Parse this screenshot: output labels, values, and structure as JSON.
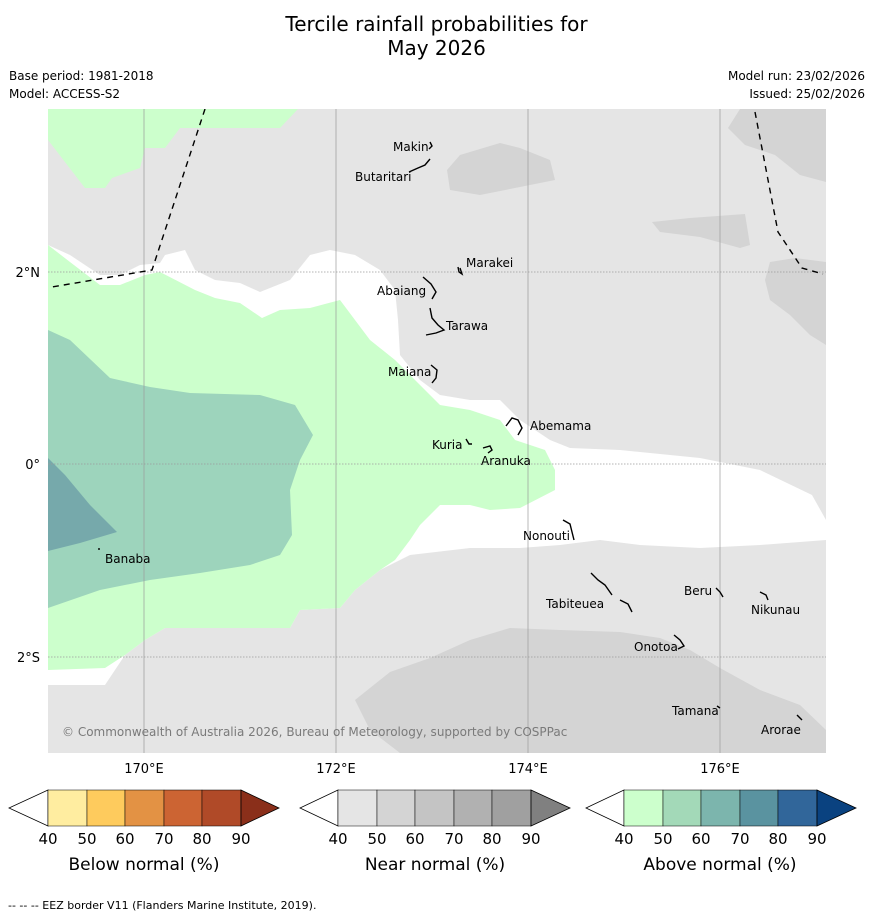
{
  "title": {
    "line1": "Tercile rainfall probabilities for",
    "line2": "May 2026"
  },
  "meta": {
    "base_period": "Base period: 1981-2018",
    "model": "Model: ACCESS-S2",
    "model_run": "Model run: 23/02/2026",
    "issued": "Issued: 25/02/2026"
  },
  "map": {
    "lon_labels": [
      "170°E",
      "172°E",
      "174°E",
      "176°E"
    ],
    "lat_labels": [
      "2°N",
      "0°",
      "2°S"
    ],
    "islands": [
      "Makin",
      "Butaritari",
      "Marakei",
      "Abaiang",
      "Tarawa",
      "Maiana",
      "Abemama",
      "Kuria",
      "Aranuka",
      "Banaba",
      "Nonouti",
      "Tabiteuea",
      "Beru",
      "Nikunau",
      "Onotoa",
      "Tamana",
      "Arorae"
    ],
    "copyright": "© Commonwealth of Australia 2026, Bureau of Meteorology, supported by COSPPac",
    "colors": {
      "land_bg": "#ffffff",
      "near_40": "#e5e5e5",
      "near_50": "#d4d4d4",
      "above_40": "#ccffcc",
      "above_50": "#9dd4bc",
      "above_60": "#76a9ab"
    }
  },
  "colorbars": [
    {
      "label": "Below normal (%)",
      "ticks": [
        "40",
        "50",
        "60",
        "70",
        "80",
        "90"
      ],
      "colors": [
        "#ffeda0",
        "#fecb5d",
        "#e39244",
        "#cc6433",
        "#b04a28",
        "#8a2f1a"
      ]
    },
    {
      "label": "Near normal (%)",
      "ticks": [
        "40",
        "50",
        "60",
        "70",
        "80",
        "90"
      ],
      "colors": [
        "#e5e5e5",
        "#d4d4d4",
        "#c4c4c4",
        "#b1b1b1",
        "#a0a0a0",
        "#808080"
      ]
    },
    {
      "label": "Above normal (%)",
      "ticks": [
        "40",
        "50",
        "60",
        "70",
        "80",
        "90"
      ],
      "colors": [
        "#ccffcc",
        "#a3d9b8",
        "#7cb5ad",
        "#5a93a0",
        "#31669a",
        "#0a4280"
      ]
    }
  ],
  "footer": "--  --  -- EEZ border V11 (Flanders Marine Institute, 2019)."
}
